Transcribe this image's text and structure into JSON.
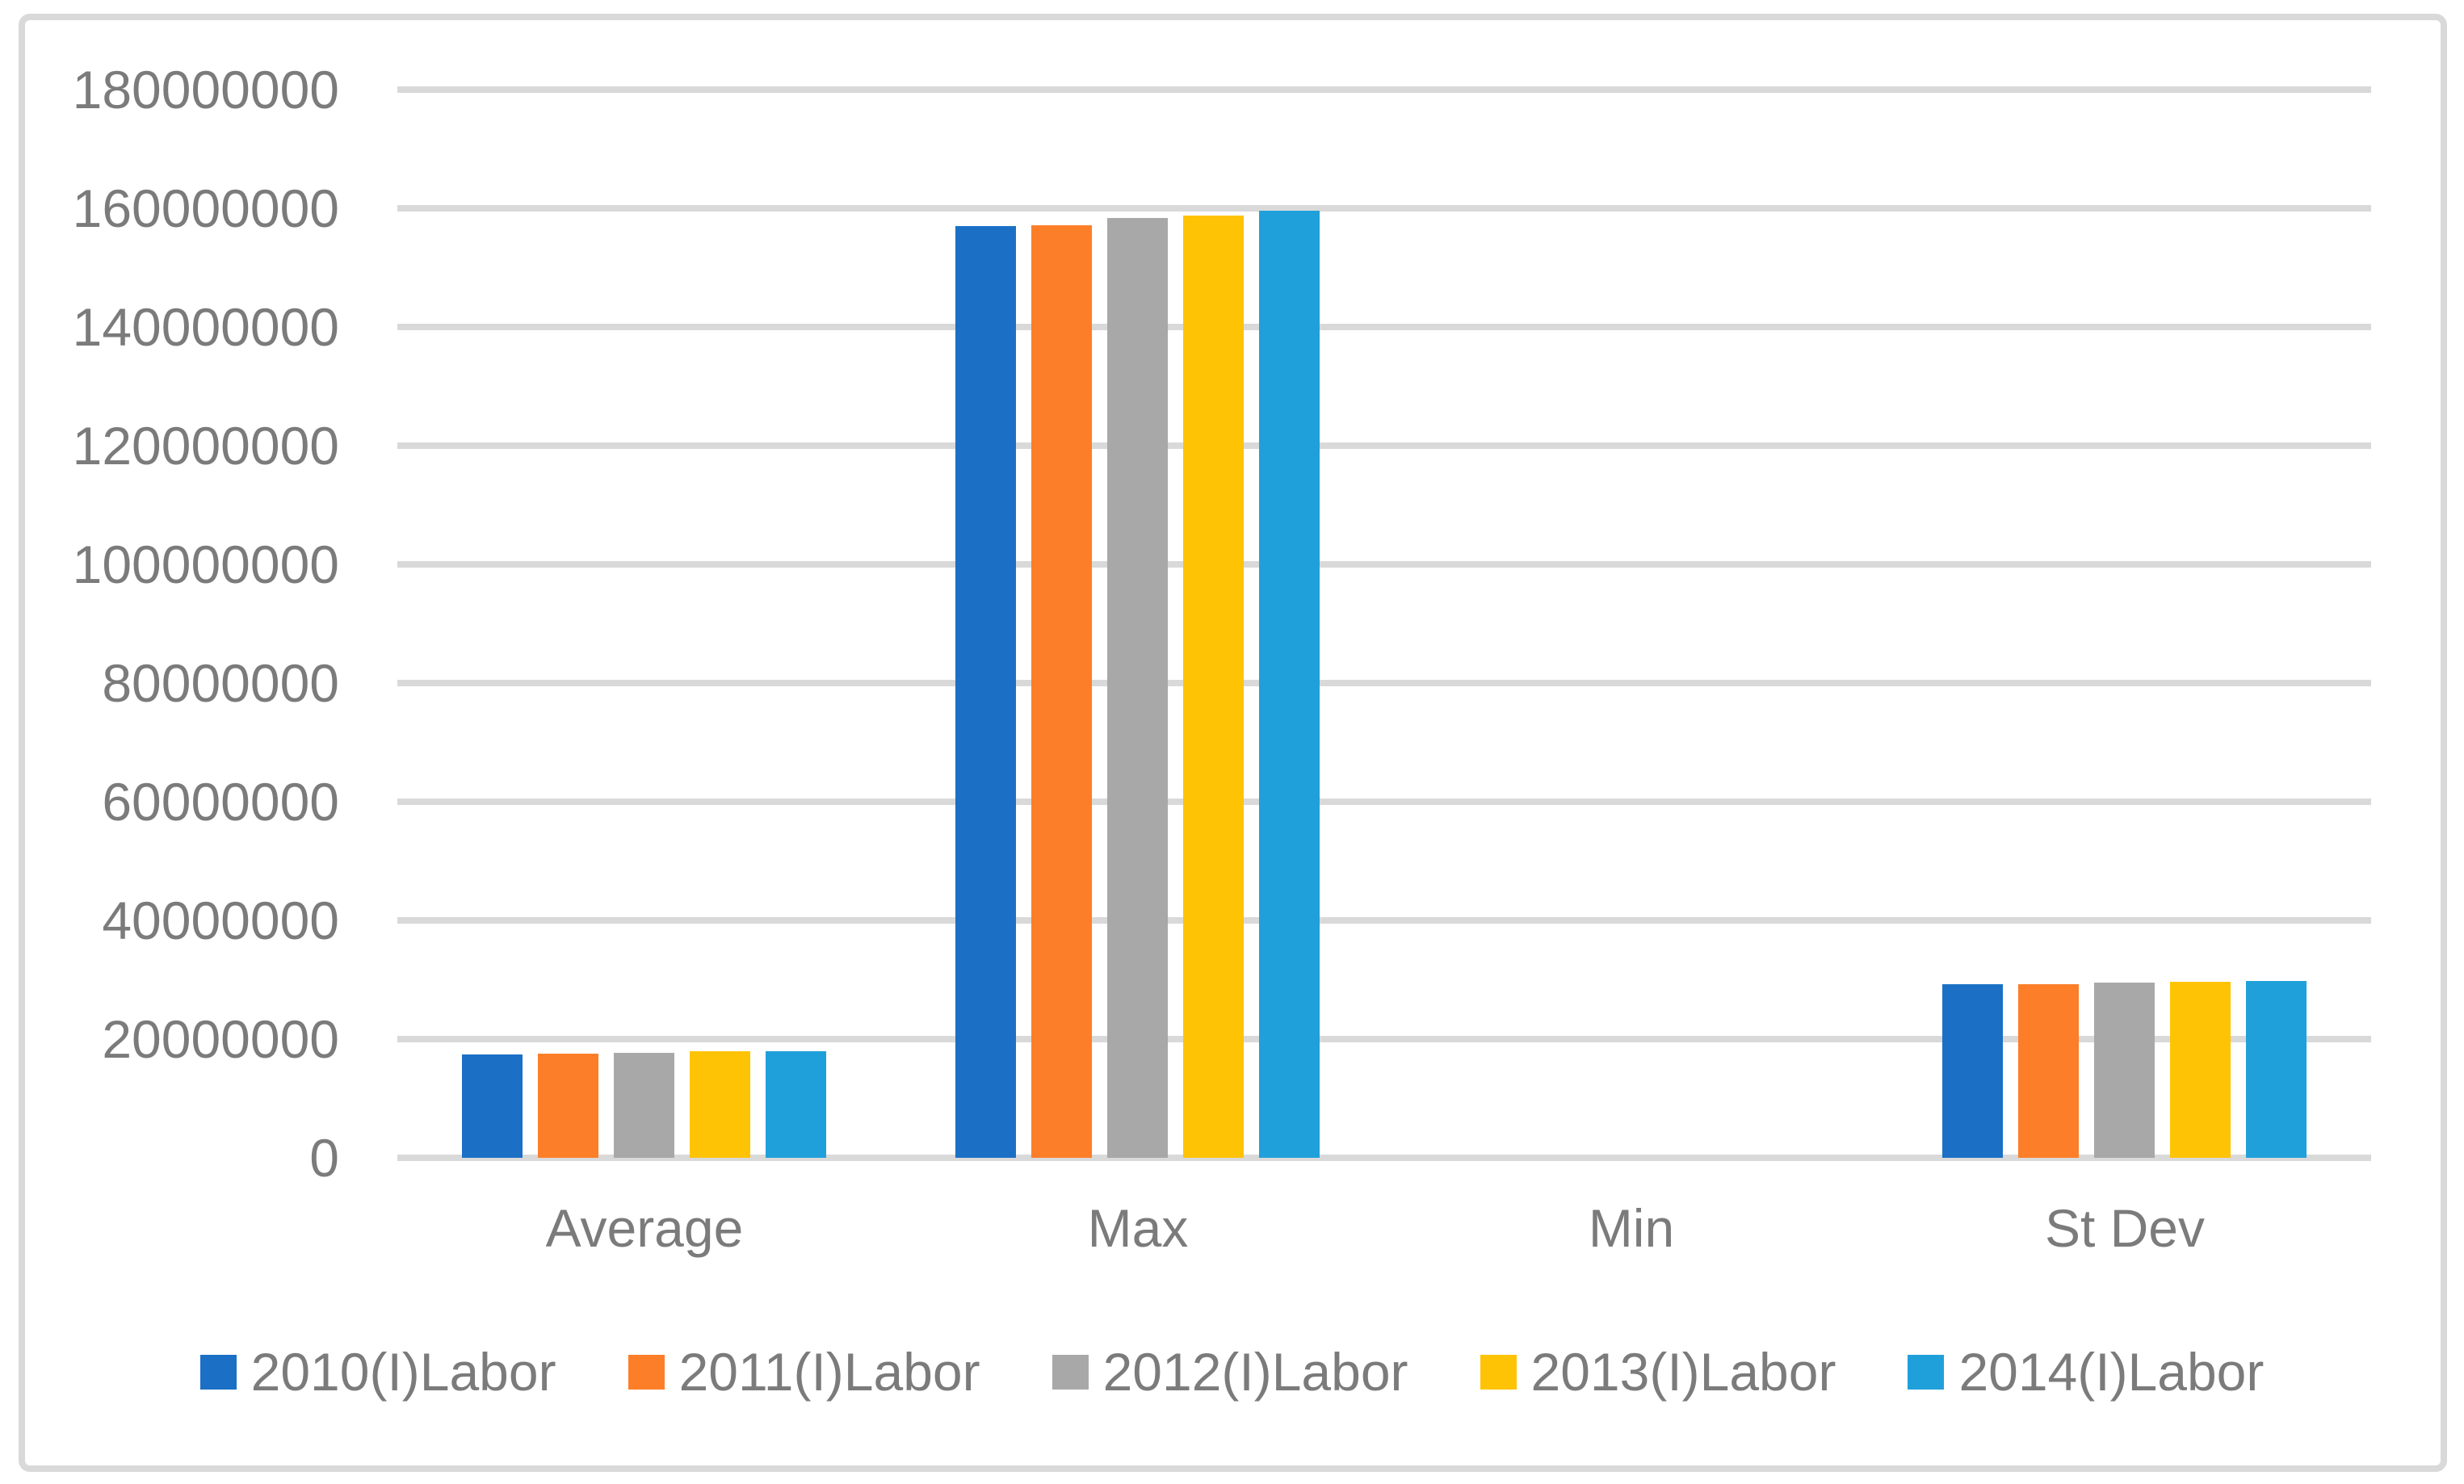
{
  "chart_data": {
    "type": "bar",
    "title": "",
    "xlabel": "",
    "ylabel": "",
    "categories": [
      "Average",
      "Max",
      "Min",
      "St Dev"
    ],
    "series": [
      {
        "name": "2010(I)Labor",
        "color": "#1B70C6",
        "values": [
          17400000,
          157000000,
          0,
          29300000
        ]
      },
      {
        "name": "2011(I)Labor",
        "color": "#FD7E28",
        "values": [
          17500000,
          157200000,
          0,
          29300000
        ]
      },
      {
        "name": "2012(I)Labor",
        "color": "#A8A8A8",
        "values": [
          17700000,
          158300000,
          0,
          29500000
        ]
      },
      {
        "name": "2013(I)Labor",
        "color": "#FFC305",
        "values": [
          17900000,
          158800000,
          0,
          29700000
        ]
      },
      {
        "name": "2014(I)Labor",
        "color": "#20A0DA",
        "values": [
          18000000,
          159600000,
          0,
          29800000
        ]
      }
    ],
    "y_axis": {
      "min": 0,
      "max": 180000000,
      "tick_step": 20000000,
      "tick_labels": [
        "180000000",
        "160000000",
        "140000000",
        "120000000",
        "100000000",
        "80000000",
        "60000000",
        "40000000",
        "20000000",
        "0"
      ]
    },
    "grid": "horizontal",
    "legend_position": "bottom"
  },
  "colors": {
    "background": "#FFFFFF",
    "frame": "#D9D9D9",
    "gridline": "#D9D9D9",
    "axis_text": "#7B7B7B"
  }
}
